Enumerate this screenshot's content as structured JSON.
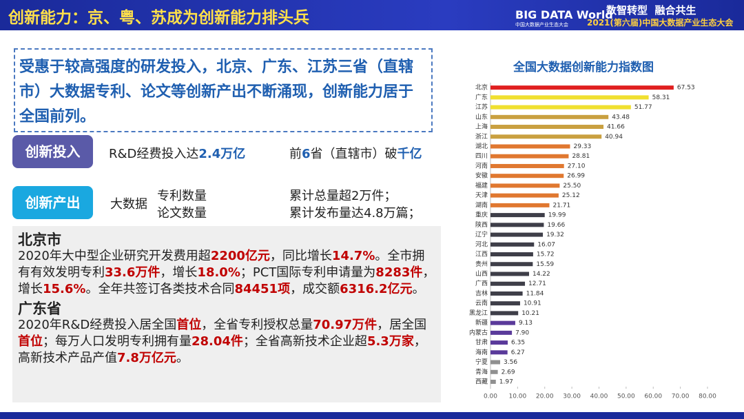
{
  "header": {
    "title": "创新能力：京、粤、苏成为创新能力排头兵",
    "logo": "BIG DATA World",
    "logo_sub": "中国大数据产业生态大会",
    "slogan": "数智转型  融合共生",
    "event": "2021(第六届)中国大数据产业生态大会"
  },
  "intro": "受惠于较高强度的研发投入，北京、广东、江苏三省（直辖市）大数据专利、论文等创新产出不断涌现，创新能力居于全国前列。",
  "input": {
    "label": "创新投入",
    "text1": [
      "R&D经费投入达",
      "2.4万亿"
    ],
    "text2": [
      "前",
      "6",
      "省（直辖市）破",
      "千亿"
    ]
  },
  "output": {
    "label": "创新产出",
    "lead": "大数据",
    "items": [
      "专利数量",
      "论文数量"
    ],
    "facts": [
      "累计总量超2万件；",
      "累计发布量达4.8万篇；"
    ]
  },
  "beijing": {
    "title": "北京市",
    "text": [
      "2020年大中型企业研究开发费用超",
      "2200亿元",
      "，同比增长",
      "14.7%",
      "。全市拥有有效发明专利",
      "33.6万件",
      "，增长",
      "18.0%",
      "；PCT国际专利申请量为",
      "8283件",
      "，增长",
      "15.6%",
      "。全年共签订各类技术合同",
      "84451项",
      "，成交额",
      "6316.2亿元",
      "。"
    ]
  },
  "guangdong": {
    "title": "广东省",
    "text": [
      "2020年R&D经费投入居全国",
      "首位",
      "，全省专利授权总量",
      "70.97万件",
      "，居全国",
      "首位",
      "；每万人口发明专利拥有量",
      "28.04件",
      "；全省高新技术企业超",
      "5.3万家",
      "，高新技术产品产值",
      "7.8万亿元",
      "。"
    ]
  },
  "chart_data": {
    "type": "hbar",
    "title": "全国大数据创新能力指数图",
    "categories": [
      "北京",
      "广东",
      "江苏",
      "山东",
      "上海",
      "浙江",
      "湖北",
      "四川",
      "河南",
      "安徽",
      "福建",
      "天津",
      "湖南",
      "重庆",
      "陕西",
      "辽宁",
      "河北",
      "江西",
      "贵州",
      "山西",
      "广西",
      "吉林",
      "云南",
      "黑龙江",
      "新疆",
      "内蒙古",
      "甘肃",
      "海南",
      "宁夏",
      "青海",
      "西藏"
    ],
    "values": [
      67.53,
      58.31,
      51.77,
      43.48,
      41.66,
      40.94,
      29.33,
      28.81,
      27.1,
      26.99,
      25.5,
      25.12,
      21.71,
      19.99,
      19.66,
      19.32,
      16.07,
      15.72,
      15.59,
      14.22,
      12.71,
      11.84,
      10.91,
      10.21,
      9.13,
      7.9,
      6.35,
      6.27,
      3.56,
      2.69,
      1.97
    ],
    "value_labels": [
      "67.53",
      "58.31",
      "51.77",
      "43.48",
      "41.66",
      "40.94",
      "29.33",
      "28.81",
      "27.10",
      "26.99",
      "25.50",
      "25.12",
      "21.71",
      "19.99",
      "19.66",
      "19.32",
      "16.07",
      "15.72",
      "15.59",
      "14.22",
      "12.71",
      "11.84",
      "10.91",
      "10.21",
      "9.13",
      "7.90",
      "6.35",
      "6.27",
      "3.56",
      "2.69",
      "1.97"
    ],
    "colors": [
      "#e02020",
      "#f0e030",
      "#f0e030",
      "#c9a040",
      "#c9a040",
      "#c9a040",
      "#e07830",
      "#e07830",
      "#e07830",
      "#e07830",
      "#e07830",
      "#e07830",
      "#e07830",
      "#3e3e48",
      "#3e3e48",
      "#3e3e48",
      "#3e3e48",
      "#3e3e48",
      "#3e3e48",
      "#3e3e48",
      "#3e3e48",
      "#3e3e48",
      "#3e3e48",
      "#3e3e48",
      "#5a3a9a",
      "#5a3a9a",
      "#5a3a9a",
      "#5a3a9a",
      "#909090",
      "#909090",
      "#909090"
    ],
    "xlim": [
      0,
      80
    ],
    "xticks": [
      {
        "value": 0,
        "label": "0.00"
      },
      {
        "value": 10,
        "label": "10.00"
      },
      {
        "value": 20,
        "label": "20.00"
      },
      {
        "value": 30,
        "label": "30.00"
      },
      {
        "value": 40,
        "label": "40.00"
      },
      {
        "value": 50,
        "label": "50.00"
      },
      {
        "value": 60,
        "label": "60.00"
      },
      {
        "value": 70,
        "label": "70.00"
      },
      {
        "value": 80,
        "label": "80.00"
      }
    ]
  }
}
